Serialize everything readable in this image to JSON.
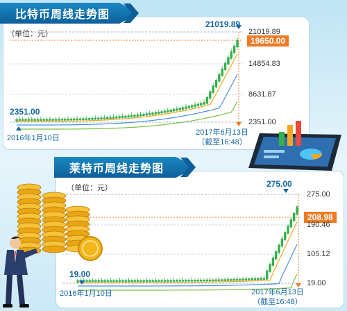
{
  "btc": {
    "title": "比特币周线走势图",
    "unit": "（单位：元）",
    "peak_label": "21019.89",
    "start_label": "2351.00",
    "start_date": "2016年1月10日",
    "end_date": "2017年6月13日",
    "end_time": "（截至16:48）",
    "current_price": "19650.00",
    "ticks": [
      "21019.89",
      "14854.83",
      "8631.87",
      "2351.00"
    ]
  },
  "ltc": {
    "title": "莱特币周线走势图",
    "unit": "（单位：元）",
    "peak_label": "275.00",
    "start_label": "19.00",
    "start_date": "2016年1月10日",
    "end_date": "2017年6月13日",
    "end_time": "（截至16:48）",
    "current_price": "208.98",
    "ticks": [
      "275.00",
      "190.46",
      "105.12",
      "19.00"
    ]
  },
  "colors": {
    "title_blue": "#1178b8",
    "accent_orange": "#f07b22",
    "candle_green": "#35b04a",
    "candle_red": "#e84a3c",
    "ma_orange": "#f5a623",
    "ma_blue": "#4a90d9",
    "ma_green": "#7ac143"
  },
  "illustrations": [
    "tablet-with-charts-icon",
    "gold-coins-icon",
    "businessman-pushing-coin-icon"
  ]
}
